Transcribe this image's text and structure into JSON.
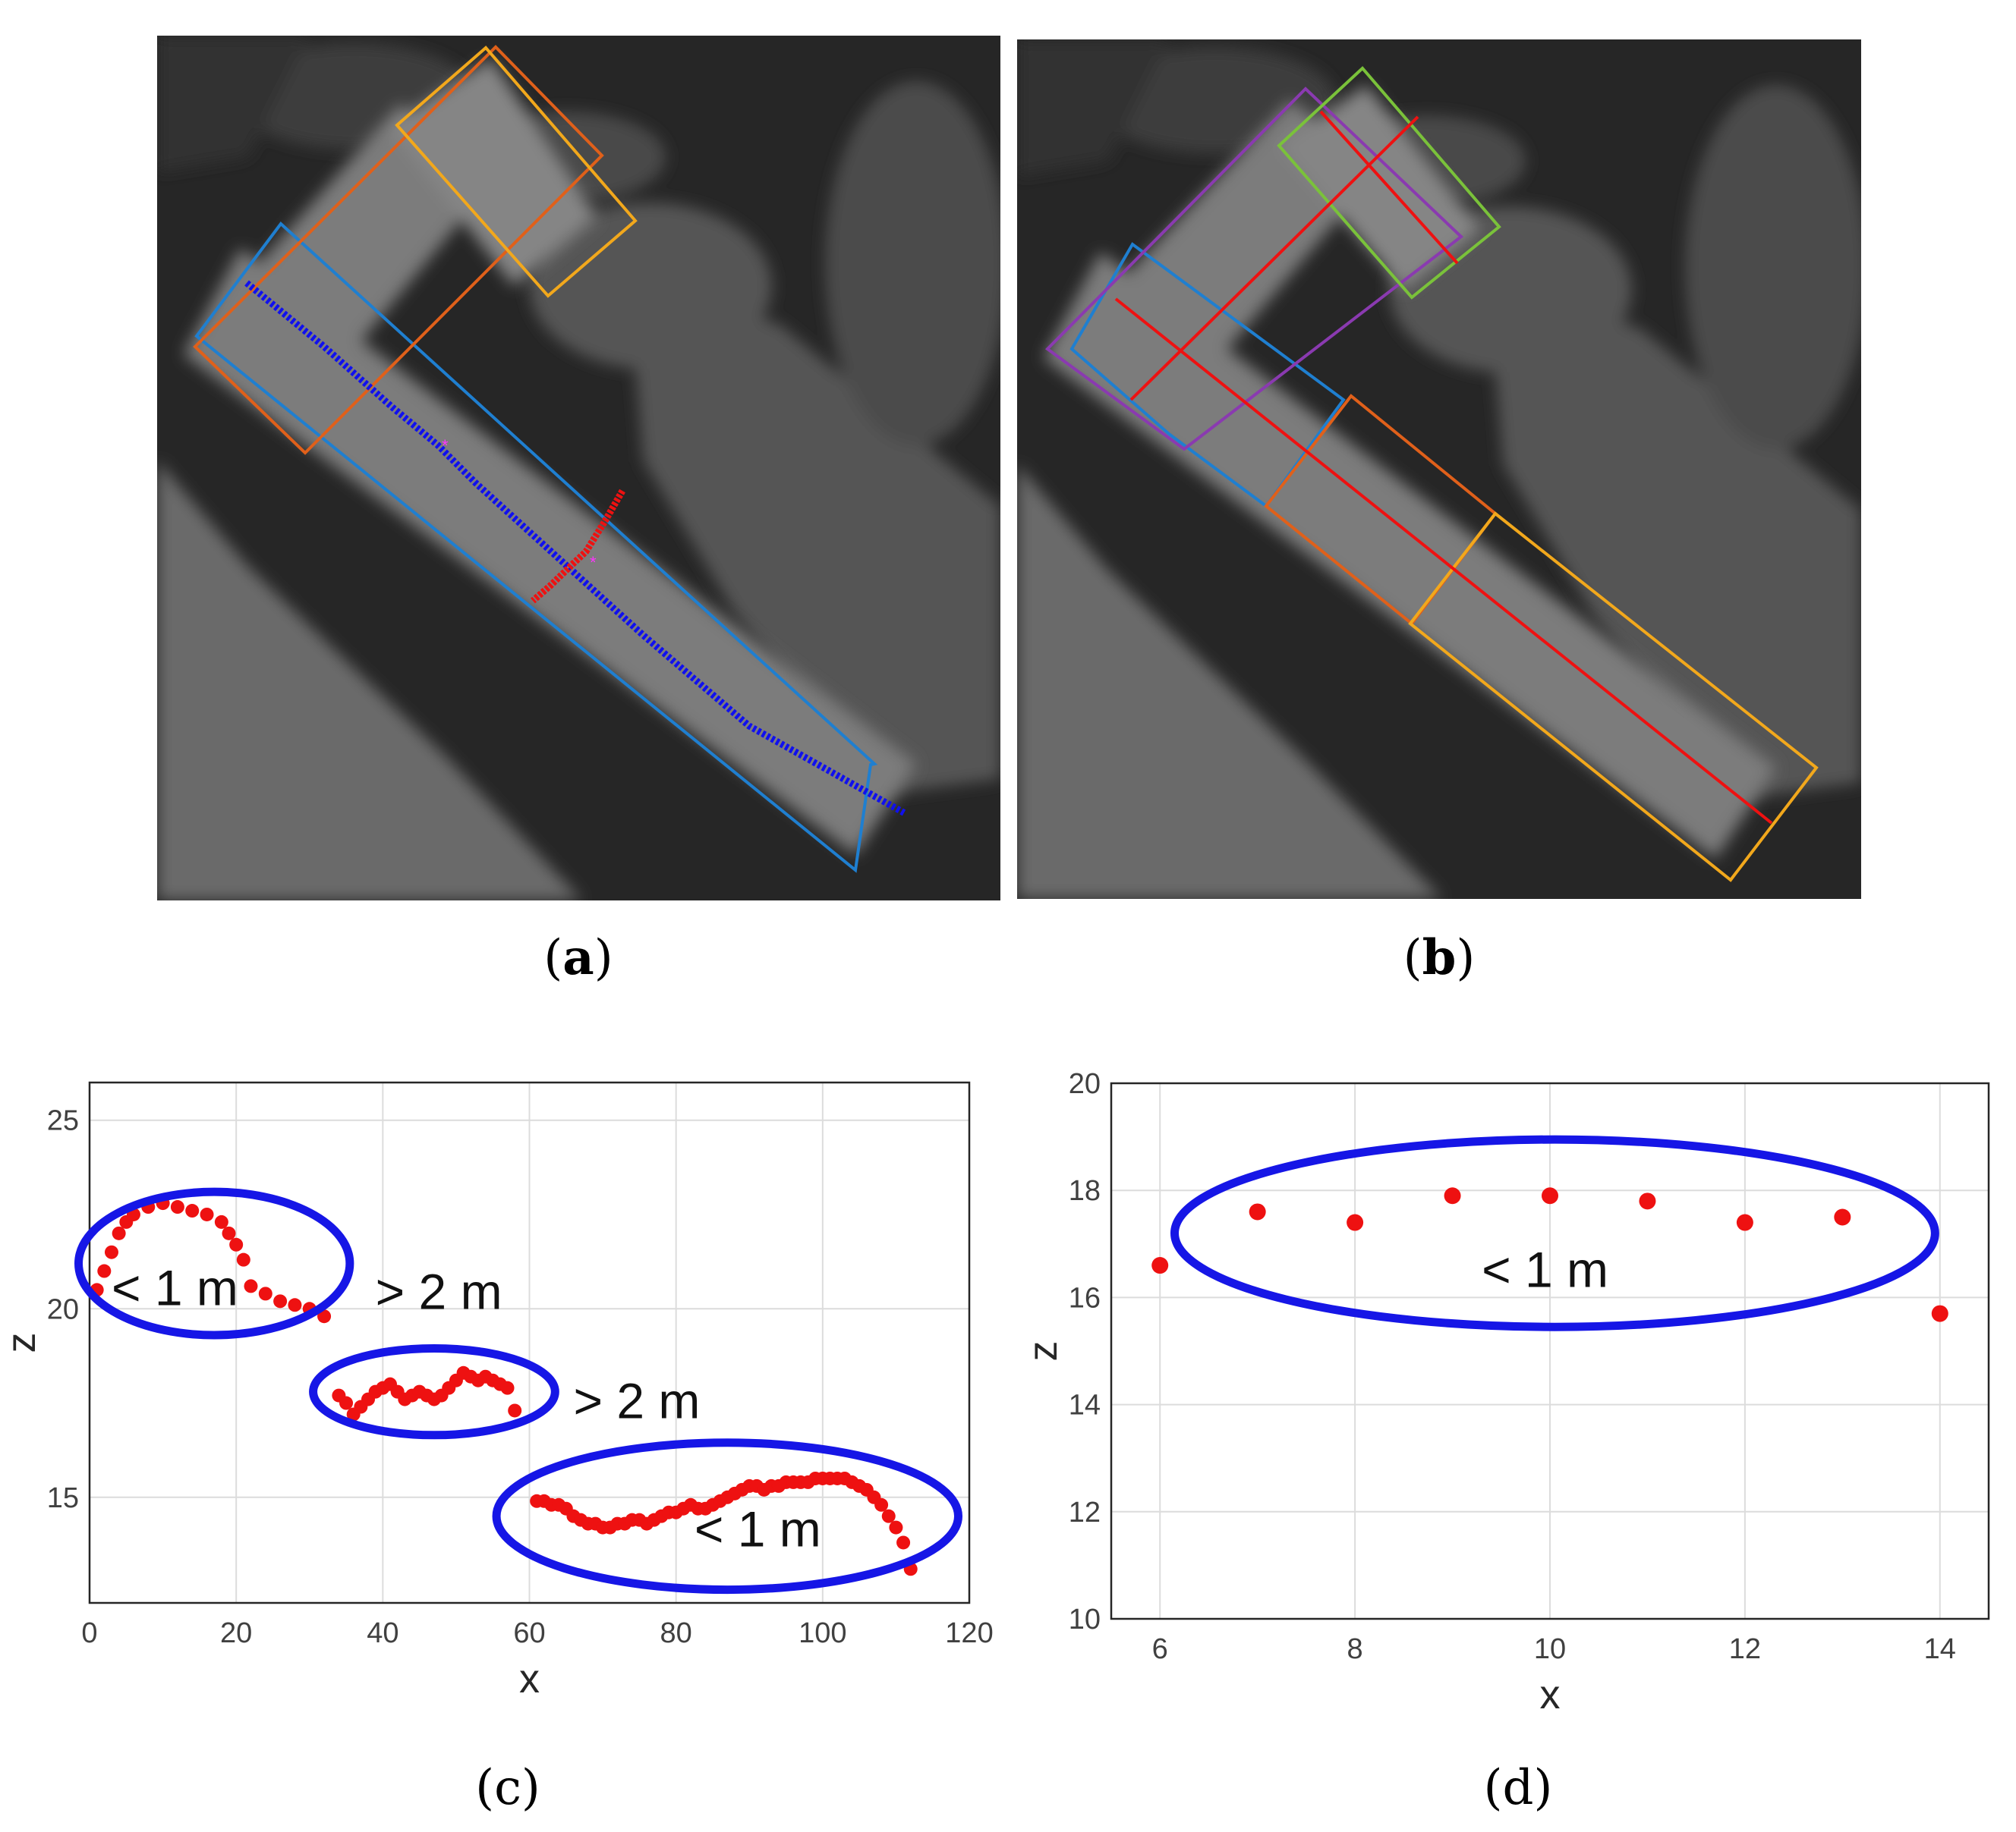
{
  "figure": {
    "captions": [
      {
        "id": "a",
        "paren_open": "(",
        "letter": "a",
        "paren_close": ")"
      },
      {
        "id": "b",
        "paren_open": "(",
        "letter": "b",
        "paren_close": ")"
      },
      {
        "id": "c",
        "paren_open": "(",
        "letter": "c",
        "paren_close": ")"
      },
      {
        "id": "d",
        "paren_open": "(",
        "letter": "d",
        "paren_close": ")"
      }
    ],
    "colors": {
      "background_image_dark": "#262626",
      "building_gray": "#7a7a7a",
      "box_blue": "#1f7fd0",
      "box_orange": "#e0601a",
      "box_yellow": "#f2a81c",
      "box_green": "#7ac23a",
      "box_purple": "#8a3ab0",
      "centerline_blue": "#1010ee",
      "profile_red": "#ee1111",
      "ellipse_blue": "#1616e6",
      "magenta_marker": "#ff33ff"
    }
  },
  "chart_data": [
    {
      "panel": "c",
      "type": "scatter",
      "xlabel": "x",
      "ylabel": "z",
      "xlim": [
        0,
        120
      ],
      "ylim": [
        12.2,
        26.0
      ],
      "xticks": [
        0,
        20,
        40,
        60,
        80,
        100,
        120
      ],
      "yticks": [
        15,
        20,
        25
      ],
      "grid": true,
      "series": [
        {
          "color": "#ee1111",
          "points": [
            [
              1,
              20.5
            ],
            [
              2,
              21.0
            ],
            [
              3,
              21.5
            ],
            [
              4,
              22.0
            ],
            [
              5,
              22.3
            ],
            [
              6,
              22.5
            ],
            [
              8,
              22.7
            ],
            [
              10,
              22.8
            ],
            [
              12,
              22.7
            ],
            [
              14,
              22.6
            ],
            [
              16,
              22.5
            ],
            [
              18,
              22.3
            ],
            [
              19,
              22.0
            ],
            [
              20,
              21.7
            ],
            [
              21,
              21.3
            ],
            [
              22,
              20.6
            ],
            [
              24,
              20.4
            ],
            [
              26,
              20.2
            ],
            [
              28,
              20.1
            ],
            [
              30,
              20.0
            ],
            [
              32,
              19.8
            ],
            [
              34,
              17.7
            ],
            [
              35,
              17.5
            ],
            [
              36,
              17.2
            ],
            [
              37,
              17.4
            ],
            [
              38,
              17.6
            ],
            [
              39,
              17.8
            ],
            [
              40,
              17.9
            ],
            [
              41,
              18.0
            ],
            [
              42,
              17.8
            ],
            [
              43,
              17.6
            ],
            [
              44,
              17.7
            ],
            [
              45,
              17.8
            ],
            [
              46,
              17.7
            ],
            [
              47,
              17.6
            ],
            [
              48,
              17.7
            ],
            [
              49,
              17.9
            ],
            [
              50,
              18.1
            ],
            [
              51,
              18.3
            ],
            [
              52,
              18.2
            ],
            [
              53,
              18.1
            ],
            [
              54,
              18.2
            ],
            [
              55,
              18.1
            ],
            [
              56,
              18.0
            ],
            [
              57,
              17.9
            ],
            [
              58,
              17.3
            ],
            [
              61,
              14.9
            ],
            [
              62,
              14.9
            ],
            [
              63,
              14.8
            ],
            [
              64,
              14.8
            ],
            [
              65,
              14.7
            ],
            [
              66,
              14.5
            ],
            [
              67,
              14.4
            ],
            [
              68,
              14.3
            ],
            [
              69,
              14.3
            ],
            [
              70,
              14.2
            ],
            [
              71,
              14.2
            ],
            [
              72,
              14.3
            ],
            [
              73,
              14.3
            ],
            [
              74,
              14.4
            ],
            [
              75,
              14.4
            ],
            [
              76,
              14.3
            ],
            [
              77,
              14.4
            ],
            [
              78,
              14.5
            ],
            [
              79,
              14.6
            ],
            [
              80,
              14.6
            ],
            [
              81,
              14.7
            ],
            [
              82,
              14.8
            ],
            [
              83,
              14.7
            ],
            [
              84,
              14.7
            ],
            [
              85,
              14.8
            ],
            [
              86,
              14.9
            ],
            [
              87,
              15.0
            ],
            [
              88,
              15.1
            ],
            [
              89,
              15.2
            ],
            [
              90,
              15.3
            ],
            [
              91,
              15.3
            ],
            [
              92,
              15.2
            ],
            [
              93,
              15.3
            ],
            [
              94,
              15.3
            ],
            [
              95,
              15.4
            ],
            [
              96,
              15.4
            ],
            [
              97,
              15.4
            ],
            [
              98,
              15.4
            ],
            [
              99,
              15.5
            ],
            [
              100,
              15.5
            ],
            [
              101,
              15.5
            ],
            [
              102,
              15.5
            ],
            [
              103,
              15.5
            ],
            [
              104,
              15.4
            ],
            [
              105,
              15.3
            ],
            [
              106,
              15.2
            ],
            [
              107,
              15.0
            ],
            [
              108,
              14.8
            ],
            [
              109,
              14.5
            ],
            [
              110,
              14.2
            ],
            [
              111,
              13.8
            ],
            [
              112,
              13.1
            ]
          ]
        }
      ],
      "ellipses": [
        {
          "cx": 17,
          "cy": 21.2,
          "rx": 18.5,
          "ry": 1.9
        },
        {
          "cx": 47,
          "cy": 17.8,
          "rx": 16.5,
          "ry": 1.15
        },
        {
          "cx": 87,
          "cy": 14.5,
          "rx": 31.5,
          "ry": 1.95
        }
      ],
      "annotations": [
        {
          "text": "< 1 m",
          "x": 3,
          "y": 20.1
        },
        {
          "text": "> 2 m",
          "x": 39,
          "y": 20.0
        },
        {
          "text": "> 2 m",
          "x": 66,
          "y": 17.1
        },
        {
          "text": "< 1 m",
          "x": 82.5,
          "y": 13.7
        }
      ]
    },
    {
      "panel": "d",
      "type": "scatter",
      "xlabel": "x",
      "ylabel": "z",
      "xlim": [
        5.5,
        14.5
      ],
      "ylim": [
        10,
        20
      ],
      "xticks": [
        6,
        8,
        10,
        12,
        14
      ],
      "yticks": [
        10,
        12,
        14,
        16,
        18,
        20
      ],
      "grid": true,
      "series": [
        {
          "color": "#ee1111",
          "points": [
            [
              6,
              16.6
            ],
            [
              7,
              17.6
            ],
            [
              8,
              17.4
            ],
            [
              9,
              17.9
            ],
            [
              10,
              17.9
            ],
            [
              11,
              17.8
            ],
            [
              12,
              17.4
            ],
            [
              13,
              17.5
            ],
            [
              14,
              15.7
            ]
          ]
        }
      ],
      "ellipses": [
        {
          "cx": 10.05,
          "cy": 17.2,
          "rx": 3.9,
          "ry": 1.75
        }
      ],
      "annotations": [
        {
          "text": "< 1 m",
          "x": 9.3,
          "y": 16.2
        }
      ]
    }
  ]
}
